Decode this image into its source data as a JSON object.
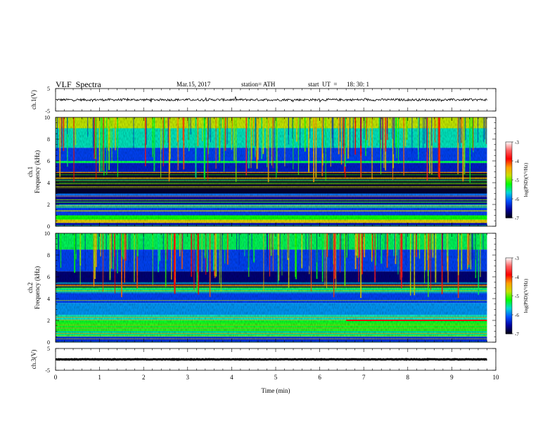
{
  "header": {
    "title": "VLF  Spectra",
    "date": "Mar.15, 2017",
    "station": "station= ATH",
    "start_label": "start  UT  =",
    "start_time": "18: 30: 1"
  },
  "colorbar": {
    "label": "log(PSD)(V²/Hz)",
    "ticks": [
      "-3",
      "-4",
      "-5",
      "-6",
      "-7"
    ],
    "colors": [
      "#ffffff",
      "#ff6060",
      "#ff0000",
      "#ffa000",
      "#c8e000",
      "#00ff00",
      "#00d8d8",
      "#0050ff",
      "#0000a0",
      "#000010"
    ]
  },
  "chart_data": [
    {
      "type": "line",
      "name": "ch1-waveform",
      "ylabel": "ch.1(V)",
      "ylim": [
        -5,
        5
      ],
      "yticks": [
        "5",
        "-5"
      ],
      "x_range_min": [
        0,
        9.8
      ],
      "baseline": 0,
      "noise_amplitude": 0.5
    },
    {
      "type": "heatmap",
      "name": "ch1-spectrogram",
      "ylabel": "ch.1\nFrequency  (kHz)",
      "ylim": [
        0,
        10
      ],
      "yticks": [
        "0",
        "2",
        "4",
        "6",
        "8",
        "10"
      ],
      "x_range_min": [
        0,
        9.8
      ],
      "z_range": [
        -7,
        -3
      ],
      "bands": [
        {
          "f": [
            9.0,
            10.0
          ],
          "level": -4.8
        },
        {
          "f": [
            7.2,
            9.0
          ],
          "level": -5.6
        },
        {
          "f": [
            6.0,
            7.2
          ],
          "level": -6.2
        },
        {
          "f": [
            5.8,
            6.0
          ],
          "level": -5.4
        },
        {
          "f": [
            5.0,
            5.8
          ],
          "level": -6.4
        },
        {
          "f": [
            4.9,
            5.0
          ],
          "level": -5.6
        },
        {
          "f": [
            3.0,
            4.9
          ],
          "level": -6.9
        },
        {
          "f": [
            2.7,
            3.0
          ],
          "level": -6.0
        },
        {
          "f": [
            2.0,
            2.7
          ],
          "level": -6.6
        },
        {
          "f": [
            1.8,
            2.0
          ],
          "level": -5.7
        },
        {
          "f": [
            1.0,
            1.8
          ],
          "level": -6.2
        },
        {
          "f": [
            0.6,
            1.0
          ],
          "level": -5.2
        },
        {
          "f": [
            0.3,
            0.6
          ],
          "level": -4.6
        },
        {
          "f": [
            0.0,
            0.3
          ],
          "level": -6.5
        }
      ]
    },
    {
      "type": "heatmap",
      "name": "ch2-spectrogram",
      "ylabel": "ch.2\nFrequency  (kHz)",
      "ylim": [
        0,
        10
      ],
      "yticks": [
        "0",
        "2",
        "4",
        "6",
        "8",
        "10"
      ],
      "x_range_min": [
        0,
        9.8
      ],
      "z_range": [
        -7,
        -3
      ],
      "bands": [
        {
          "f": [
            8.5,
            10.0
          ],
          "level": -5.4
        },
        {
          "f": [
            6.5,
            8.5
          ],
          "level": -6.2
        },
        {
          "f": [
            5.0,
            6.5
          ],
          "level": -6.7
        },
        {
          "f": [
            4.6,
            5.0
          ],
          "level": -5.5
        },
        {
          "f": [
            3.6,
            4.6
          ],
          "level": -6.2
        },
        {
          "f": [
            2.5,
            3.6
          ],
          "level": -5.9
        },
        {
          "f": [
            2.0,
            2.5
          ],
          "level": -5.6
        },
        {
          "f": [
            1.0,
            2.0
          ],
          "level": -5.3
        },
        {
          "f": [
            0.5,
            1.0
          ],
          "level": -5.5
        },
        {
          "f": [
            0.0,
            0.5
          ],
          "level": -6.3
        }
      ],
      "line_feature": {
        "f": 2.0,
        "from_min": 6.6,
        "to_min": 9.8,
        "level": -3.8
      }
    },
    {
      "type": "line",
      "name": "ch3-waveform",
      "ylabel": "ch.3(V)",
      "ylim": [
        -5,
        5
      ],
      "yticks": [
        "5",
        "-5"
      ],
      "x_range_min": [
        0,
        9.8
      ],
      "baseline": 0,
      "noise_amplitude": 0.12
    }
  ],
  "x_axis": {
    "label": "Time  (min)",
    "ticks": [
      "0",
      "1",
      "2",
      "3",
      "4",
      "5",
      "6",
      "7",
      "8",
      "9",
      "10"
    ],
    "range": [
      0,
      10
    ]
  }
}
